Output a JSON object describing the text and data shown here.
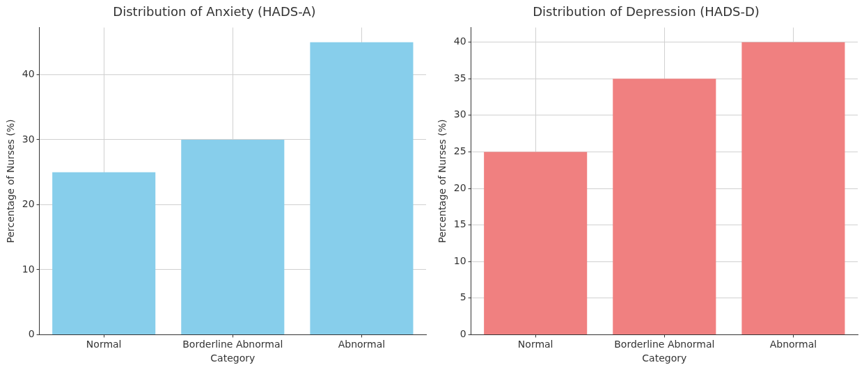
{
  "chart_data": [
    {
      "type": "bar",
      "title": "Distribution of Anxiety (HADS-A)",
      "xlabel": "Category",
      "ylabel": "Percentage of Nurses (%)",
      "categories": [
        "Normal",
        "Borderline Abnormal",
        "Abnormal"
      ],
      "values": [
        25,
        30,
        45
      ],
      "color": "#87ceeb",
      "ylim": [
        0,
        47.25
      ],
      "yticks": [
        0,
        10,
        20,
        30,
        40
      ],
      "grid": true
    },
    {
      "type": "bar",
      "title": "Distribution of Depression (HADS-D)",
      "xlabel": "Category",
      "ylabel": "Percentage of Nurses (%)",
      "categories": [
        "Normal",
        "Borderline Abnormal",
        "Abnormal"
      ],
      "values": [
        25,
        35,
        40
      ],
      "color": "#f08080",
      "ylim": [
        0,
        42
      ],
      "yticks": [
        0,
        5,
        10,
        15,
        20,
        25,
        30,
        35,
        40
      ],
      "grid": true
    }
  ]
}
